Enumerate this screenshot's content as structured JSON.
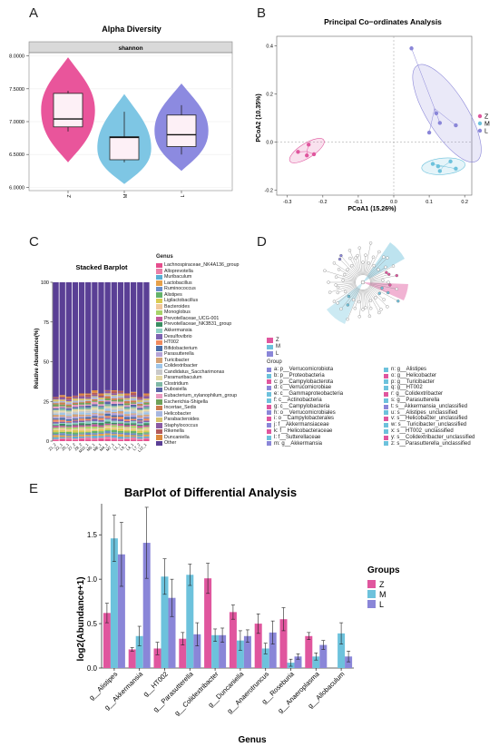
{
  "panels": {
    "a": "A",
    "b": "B",
    "c": "C",
    "d": "D",
    "e": "E"
  },
  "colors": {
    "Z": "#e0569e",
    "M": "#6dc2dc",
    "L": "#8a86d8",
    "violin_Z": "#e9559b",
    "violin_M": "#7ec6e4",
    "violin_L": "#8c8ae0"
  },
  "alpha": {
    "title": "Alpha Diversity",
    "facet": "shannon",
    "yticks": [
      "8.0000",
      "7.5000",
      "7.0000",
      "6.5000",
      "6.0000"
    ],
    "xticks": [
      "Z",
      "M",
      "L"
    ],
    "chart_data": {
      "type": "violin",
      "ylim": [
        5.95,
        8.05
      ],
      "groups": [
        {
          "name": "Z",
          "min": 6.85,
          "q1": 6.92,
          "median": 7.04,
          "q3": 7.43,
          "max": 7.47,
          "vmin": 6.38,
          "vmax": 7.98,
          "width": 0.9
        },
        {
          "name": "M",
          "min": 6.38,
          "q1": 6.42,
          "median": 6.76,
          "q3": 6.77,
          "max": 7.15,
          "vmin": 6.05,
          "vmax": 7.42,
          "width": 0.9
        },
        {
          "name": "L",
          "min": 6.5,
          "q1": 6.62,
          "median": 6.8,
          "q3": 7.1,
          "max": 7.25,
          "vmin": 6.25,
          "vmax": 7.58,
          "width": 0.9
        }
      ]
    }
  },
  "pcoa": {
    "title": "Principal Co−ordinates Analysis",
    "xlabel": "PCoA1 (15.26%)",
    "ylabel": "PCoA2 (10.35%)",
    "xticks": [
      "-0.3",
      "-0.2",
      "-0.1",
      "0.0",
      "0.1",
      "0.2"
    ],
    "yticks": [
      "0.4",
      "0.2",
      "0.0",
      "-0.2"
    ],
    "legend": [
      "Z",
      "M",
      "L"
    ],
    "chart_data": {
      "type": "scatter",
      "xlim": [
        -0.33,
        0.22
      ],
      "ylim": [
        -0.22,
        0.44
      ],
      "series": [
        {
          "name": "Z",
          "points": [
            [
              -0.27,
              -0.04
            ],
            [
              -0.24,
              -0.01
            ],
            [
              -0.225,
              -0.05
            ],
            [
              -0.245,
              -0.055
            ]
          ]
        },
        {
          "name": "M",
          "points": [
            [
              0.11,
              -0.09
            ],
            [
              0.13,
              -0.12
            ],
            [
              0.16,
              -0.08
            ],
            [
              0.175,
              -0.11
            ],
            [
              0.125,
              -0.1
            ]
          ]
        },
        {
          "name": "L",
          "points": [
            [
              0.05,
              0.39
            ],
            [
              0.13,
              0.08
            ],
            [
              0.175,
              0.07
            ],
            [
              0.12,
              0.12
            ],
            [
              0.1,
              0.04
            ]
          ]
        }
      ]
    }
  },
  "stacked": {
    "title": "Stacked Barplot",
    "ylabel": "Relative Abundance(%)",
    "yticks": [
      "100",
      "75",
      "50",
      "25",
      "0"
    ],
    "legend_title": "Genus",
    "genera": [
      {
        "name": "Lachnospiraceae_NK4A136_group",
        "color": "#e64d8d"
      },
      {
        "name": "Alloprevotella",
        "color": "#ea7fa8"
      },
      {
        "name": "Muribaculum",
        "color": "#5aafd4"
      },
      {
        "name": "Lactobacillus",
        "color": "#e6a04a"
      },
      {
        "name": "Ruminococcus",
        "color": "#6a8ec9"
      },
      {
        "name": "Alistipes",
        "color": "#63b26a"
      },
      {
        "name": "Ligilactobacillus",
        "color": "#d9cb51"
      },
      {
        "name": "Bacteroides",
        "color": "#f1c89b"
      },
      {
        "name": "Monoglobus",
        "color": "#a8d36a"
      },
      {
        "name": "Prevotellaceae_UCG-001",
        "color": "#c0589c"
      },
      {
        "name": "Prevotellaceae_NK3B31_group",
        "color": "#3a8e62"
      },
      {
        "name": "Akkermansia",
        "color": "#8fd0c4"
      },
      {
        "name": "Desulfovibrio",
        "color": "#7d62b0"
      },
      {
        "name": "HT002",
        "color": "#f08a5d"
      },
      {
        "name": "Bifidobacterium",
        "color": "#4a6ea8"
      },
      {
        "name": "Parasutterella",
        "color": "#b5a3d7"
      },
      {
        "name": "Turicibacter",
        "color": "#d4a276"
      },
      {
        "name": "Colidextribacter",
        "color": "#9ec5e8"
      },
      {
        "name": "Candidatus_Saccharimonas",
        "color": "#c9c9c9"
      },
      {
        "name": "Paramuribaculum",
        "color": "#e3d7a3"
      },
      {
        "name": "Clostridium",
        "color": "#7fb8a6"
      },
      {
        "name": "Dubosiella",
        "color": "#5864a6"
      },
      {
        "name": "Eubacterium_xylanophilum_group",
        "color": "#e99ac0"
      },
      {
        "name": "Escherichia-Shigella",
        "color": "#6fa15a"
      },
      {
        "name": "Incertae_Sedis",
        "color": "#cd7a4e"
      },
      {
        "name": "Helicobacter",
        "color": "#a7b7df"
      },
      {
        "name": "Parabacteroides",
        "color": "#d7c26d"
      },
      {
        "name": "Staphylococcus",
        "color": "#8a5aa3"
      },
      {
        "name": "Rikenella",
        "color": "#b35a5a"
      },
      {
        "name": "Duncaniella",
        "color": "#dc8a3e"
      },
      {
        "name": "Other",
        "color": "#5a3f95"
      }
    ],
    "samples": [
      "Z1_2",
      "Z2_1",
      "Z5_1",
      "Z7_2",
      "Z8_2",
      "M10_1",
      "M5_1",
      "M8_1",
      "M4_1",
      "M7_1",
      "L1_1",
      "L9_1",
      "L4_1",
      "L7_2",
      "L12_1"
    ],
    "chart_data": {
      "type": "bar",
      "stacked": true,
      "categories": [
        "Z1_2",
        "Z2_1",
        "Z5_1",
        "Z7_2",
        "Z8_2",
        "M10_1",
        "M5_1",
        "M8_1",
        "M4_1",
        "M7_1",
        "L1_1",
        "L9_1",
        "L4_1",
        "L7_2",
        "L12_1"
      ],
      "other_percent": [
        71,
        71,
        72,
        70,
        70,
        70,
        68,
        70,
        67,
        68,
        67,
        70,
        69,
        71,
        70
      ],
      "ylim": [
        0,
        100
      ]
    }
  },
  "lefse": {
    "legend": [
      "Z",
      "M",
      "L"
    ],
    "group_title": "Group",
    "items_left": [
      "a: p__Verrucomicrobiota",
      "b: p__Proteobacteria",
      "c: p__Campylobacterota",
      "d: c__Verrucomicrobiae",
      "e: c__Gammaproteobacteria",
      "f: c__Actinobacteria",
      "g: c__Campylobacteria",
      "h: o__Verrucomicrobiales",
      "i: o__Campylobacterales",
      "j: f__Akkermansiaceae",
      "k: f__Helicobacteraceae",
      "l: f__Sutterellaceae",
      "m: g__Akkermansia"
    ],
    "items_right": [
      "n: g__Alistipes",
      "o: g__Helicobacter",
      "p: g__Turicibacter",
      "q: g__HT002",
      "r: g__Colidextribacter",
      "s: g__Parasutterella",
      "t: s__Akkermansia_unclassified",
      "u: s__Alistipes_unclassified",
      "v: s__Helicobacter_unclassified",
      "w: s__Turicibacter_unclassified",
      "x: s__HT002_unclassified",
      "y: s__Colidextribacter_unclassified",
      "z: s__Parasutterella_unclassified"
    ],
    "left_colors": [
      "L",
      "M",
      "Z",
      "L",
      "M",
      "M",
      "Z",
      "L",
      "Z",
      "L",
      "Z",
      "M",
      "L"
    ],
    "right_colors": [
      "M",
      "Z",
      "M",
      "M",
      "Z",
      "M",
      "L",
      "M",
      "Z",
      "M",
      "M",
      "Z",
      "M"
    ]
  },
  "diff": {
    "title": "BarPlot of Differential Analysis",
    "xlabel": "Genus",
    "ylabel": "log2(Abundance+1)",
    "yticks": [
      "1.5",
      "1.0",
      "0.5",
      "0.0"
    ],
    "legend_title": "Groups",
    "legend": [
      "Z",
      "M",
      "L"
    ],
    "chart_data": {
      "type": "bar",
      "categories": [
        "g__Alistipes",
        "g__Akkermansia",
        "g__HT002",
        "g__Parasutterella",
        "g__Colidextribacter",
        "g__Duncaniella",
        "g__Anaerotruncus",
        "g__Roseburia",
        "g__Anaeroplasma",
        "g__Allobaculum"
      ],
      "ylim": [
        0,
        1.85
      ],
      "series": [
        {
          "name": "Z",
          "values": [
            0.62,
            0.21,
            0.22,
            0.33,
            1.01,
            0.63,
            0.5,
            0.55,
            0.36,
            0.0
          ],
          "errors": [
            0.11,
            0.02,
            0.07,
            0.07,
            0.17,
            0.08,
            0.11,
            0.13,
            0.04,
            0.0
          ]
        },
        {
          "name": "M",
          "values": [
            1.46,
            0.36,
            1.03,
            1.05,
            0.37,
            0.31,
            0.22,
            0.06,
            0.13,
            0.39
          ],
          "errors": [
            0.26,
            0.11,
            0.2,
            0.12,
            0.07,
            0.11,
            0.06,
            0.04,
            0.04,
            0.12
          ]
        },
        {
          "name": "L",
          "values": [
            1.28,
            1.41,
            0.79,
            0.38,
            0.37,
            0.36,
            0.4,
            0.13,
            0.26,
            0.13
          ],
          "errors": [
            0.36,
            0.4,
            0.21,
            0.13,
            0.08,
            0.07,
            0.13,
            0.03,
            0.05,
            0.06
          ]
        }
      ]
    }
  }
}
